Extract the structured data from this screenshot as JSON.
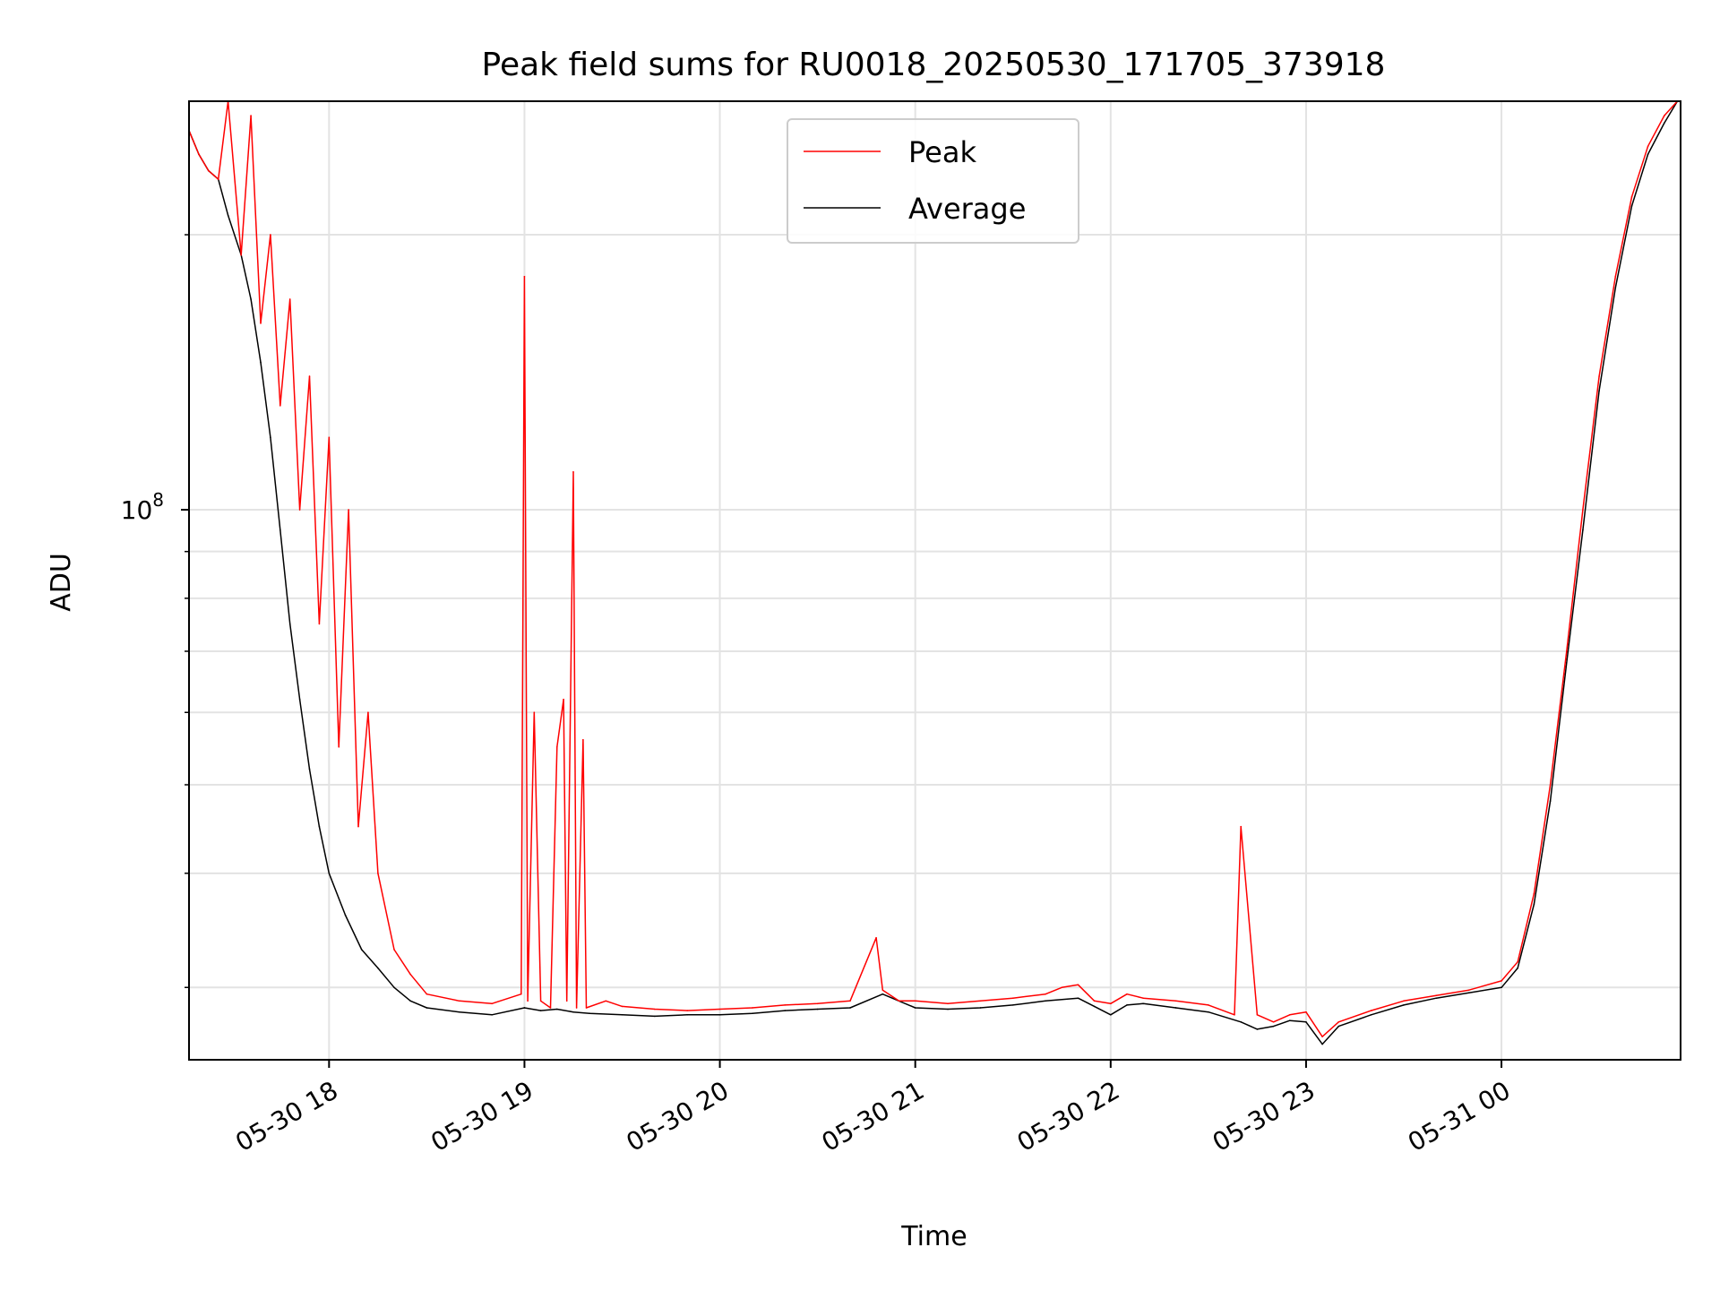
{
  "chart_data": {
    "type": "line",
    "title": "Peak field sums for RU0018_20250530_171705_373918",
    "xlabel": "Time",
    "ylabel": "ADU",
    "yscale": "log",
    "ylim": [
      25000000,
      280000000
    ],
    "xlim": [
      "2025-05-30 17:17",
      "2025-05-31 00:55"
    ],
    "y_tick_label": {
      "base": "10",
      "exponent": "8",
      "value": 100000000
    },
    "x_tick_labels": [
      {
        "label": "05-30 18",
        "time": "2025-05-30 18:00"
      },
      {
        "label": "05-30 19",
        "time": "2025-05-30 19:00"
      },
      {
        "label": "05-30 20",
        "time": "2025-05-30 20:00"
      },
      {
        "label": "05-30 21",
        "time": "2025-05-30 21:00"
      },
      {
        "label": "05-30 22",
        "time": "2025-05-30 22:00"
      },
      {
        "label": "05-30 23",
        "time": "2025-05-30 23:00"
      },
      {
        "label": "05-31 00",
        "time": "2025-05-31 00:00"
      }
    ],
    "minor_y_grid": [
      30000000,
      40000000,
      50000000,
      60000000,
      70000000,
      80000000,
      90000000,
      200000000
    ],
    "grid": true,
    "legend_position": "top-center",
    "series": [
      {
        "name": "Peak",
        "color": "#ff0000",
        "x": [
          "2025-05-30 17:17",
          "2025-05-30 17:20",
          "2025-05-30 17:23",
          "2025-05-30 17:26",
          "2025-05-30 17:29",
          "2025-05-30 17:33",
          "2025-05-30 17:36",
          "2025-05-30 17:39",
          "2025-05-30 17:42",
          "2025-05-30 17:45",
          "2025-05-30 17:48",
          "2025-05-30 17:51",
          "2025-05-30 17:54",
          "2025-05-30 17:57",
          "2025-05-30 18:00",
          "2025-05-30 18:03",
          "2025-05-30 18:06",
          "2025-05-30 18:09",
          "2025-05-30 18:12",
          "2025-05-30 18:15",
          "2025-05-30 18:20",
          "2025-05-30 18:25",
          "2025-05-30 18:30",
          "2025-05-30 18:40",
          "2025-05-30 18:50",
          "2025-05-30 18:59",
          "2025-05-30 19:00",
          "2025-05-30 19:01",
          "2025-05-30 19:03",
          "2025-05-30 19:05",
          "2025-05-30 19:08",
          "2025-05-30 19:10",
          "2025-05-30 19:12",
          "2025-05-30 19:13",
          "2025-05-30 19:15",
          "2025-05-30 19:16",
          "2025-05-30 19:18",
          "2025-05-30 19:19",
          "2025-05-30 19:25",
          "2025-05-30 19:30",
          "2025-05-30 19:40",
          "2025-05-30 19:50",
          "2025-05-30 20:00",
          "2025-05-30 20:10",
          "2025-05-30 20:20",
          "2025-05-30 20:30",
          "2025-05-30 20:40",
          "2025-05-30 20:48",
          "2025-05-30 20:50",
          "2025-05-30 20:55",
          "2025-05-30 21:00",
          "2025-05-30 21:10",
          "2025-05-30 21:20",
          "2025-05-30 21:30",
          "2025-05-30 21:40",
          "2025-05-30 21:45",
          "2025-05-30 21:50",
          "2025-05-30 21:55",
          "2025-05-30 22:00",
          "2025-05-30 22:05",
          "2025-05-30 22:10",
          "2025-05-30 22:20",
          "2025-05-30 22:30",
          "2025-05-30 22:38",
          "2025-05-30 22:40",
          "2025-05-30 22:45",
          "2025-05-30 22:50",
          "2025-05-30 22:55",
          "2025-05-30 23:00",
          "2025-05-30 23:05",
          "2025-05-30 23:10",
          "2025-05-30 23:20",
          "2025-05-30 23:30",
          "2025-05-30 23:40",
          "2025-05-30 23:50",
          "2025-05-31 00:00",
          "2025-05-31 00:05",
          "2025-05-31 00:10",
          "2025-05-31 00:15",
          "2025-05-31 00:20",
          "2025-05-31 00:25",
          "2025-05-31 00:30",
          "2025-05-31 00:35",
          "2025-05-31 00:40",
          "2025-05-31 00:45",
          "2025-05-31 00:50",
          "2025-05-31 00:54"
        ],
        "values": [
          260000000,
          245000000,
          235000000,
          230000000,
          280000000,
          190000000,
          270000000,
          160000000,
          200000000,
          130000000,
          170000000,
          100000000,
          140000000,
          75000000,
          120000000,
          55000000,
          100000000,
          45000000,
          60000000,
          40000000,
          33000000,
          31000000,
          29500000,
          29000000,
          28800000,
          29500000,
          180000000,
          29000000,
          60000000,
          29000000,
          28500000,
          55000000,
          62000000,
          29000000,
          110000000,
          28500000,
          56000000,
          28500000,
          29000000,
          28600000,
          28400000,
          28300000,
          28400000,
          28500000,
          28700000,
          28800000,
          29000000,
          34000000,
          29800000,
          29000000,
          29000000,
          28800000,
          29000000,
          29200000,
          29500000,
          30000000,
          30200000,
          29000000,
          28800000,
          29500000,
          29200000,
          29000000,
          28700000,
          28000000,
          45000000,
          28000000,
          27500000,
          28000000,
          28200000,
          26500000,
          27500000,
          28300000,
          29000000,
          29400000,
          29800000,
          30500000,
          32000000,
          38000000,
          50000000,
          70000000,
          100000000,
          140000000,
          180000000,
          220000000,
          250000000,
          270000000,
          280000000
        ]
      },
      {
        "name": "Average",
        "color": "#000000",
        "x": [
          "2025-05-30 17:17",
          "2025-05-30 17:20",
          "2025-05-30 17:23",
          "2025-05-30 17:26",
          "2025-05-30 17:29",
          "2025-05-30 17:33",
          "2025-05-30 17:36",
          "2025-05-30 17:39",
          "2025-05-30 17:42",
          "2025-05-30 17:45",
          "2025-05-30 17:48",
          "2025-05-30 17:51",
          "2025-05-30 17:54",
          "2025-05-30 17:57",
          "2025-05-30 18:00",
          "2025-05-30 18:05",
          "2025-05-30 18:10",
          "2025-05-30 18:15",
          "2025-05-30 18:20",
          "2025-05-30 18:25",
          "2025-05-30 18:30",
          "2025-05-30 18:40",
          "2025-05-30 18:50",
          "2025-05-30 19:00",
          "2025-05-30 19:05",
          "2025-05-30 19:10",
          "2025-05-30 19:15",
          "2025-05-30 19:20",
          "2025-05-30 19:30",
          "2025-05-30 19:40",
          "2025-05-30 19:50",
          "2025-05-30 20:00",
          "2025-05-30 20:10",
          "2025-05-30 20:20",
          "2025-05-30 20:30",
          "2025-05-30 20:40",
          "2025-05-30 20:50",
          "2025-05-30 21:00",
          "2025-05-30 21:10",
          "2025-05-30 21:20",
          "2025-05-30 21:30",
          "2025-05-30 21:40",
          "2025-05-30 21:50",
          "2025-05-30 21:55",
          "2025-05-30 22:00",
          "2025-05-30 22:05",
          "2025-05-30 22:10",
          "2025-05-30 22:20",
          "2025-05-30 22:30",
          "2025-05-30 22:40",
          "2025-05-30 22:45",
          "2025-05-30 22:50",
          "2025-05-30 22:55",
          "2025-05-30 23:00",
          "2025-05-30 23:05",
          "2025-05-30 23:10",
          "2025-05-30 23:20",
          "2025-05-30 23:30",
          "2025-05-30 23:40",
          "2025-05-30 23:50",
          "2025-05-31 00:00",
          "2025-05-31 00:05",
          "2025-05-31 00:10",
          "2025-05-31 00:15",
          "2025-05-31 00:20",
          "2025-05-31 00:25",
          "2025-05-31 00:30",
          "2025-05-31 00:35",
          "2025-05-31 00:40",
          "2025-05-31 00:45",
          "2025-05-31 00:50",
          "2025-05-31 00:54"
        ],
        "values": [
          260000000,
          245000000,
          235000000,
          230000000,
          210000000,
          190000000,
          170000000,
          145000000,
          120000000,
          95000000,
          75000000,
          62000000,
          52000000,
          45000000,
          40000000,
          36000000,
          33000000,
          31500000,
          30000000,
          29000000,
          28500000,
          28200000,
          28000000,
          28500000,
          28300000,
          28400000,
          28200000,
          28100000,
          28000000,
          27900000,
          28000000,
          28000000,
          28100000,
          28300000,
          28400000,
          28500000,
          29500000,
          28500000,
          28400000,
          28500000,
          28700000,
          29000000,
          29200000,
          28600000,
          28000000,
          28700000,
          28800000,
          28500000,
          28200000,
          27500000,
          27000000,
          27200000,
          27600000,
          27500000,
          26000000,
          27200000,
          28000000,
          28700000,
          29200000,
          29600000,
          30000000,
          31500000,
          37000000,
          48000000,
          68000000,
          95000000,
          135000000,
          175000000,
          215000000,
          245000000,
          265000000,
          280000000
        ]
      }
    ]
  }
}
